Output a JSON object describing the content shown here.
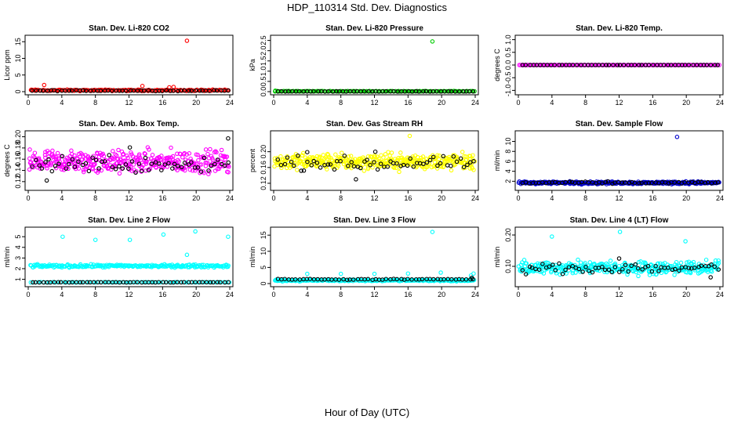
{
  "figure": {
    "title": "HDP_110314  Std. Dev. Diagnostics",
    "xlabel": "Hour of Day (UTC)"
  },
  "chart_data": [
    {
      "type": "scatter",
      "title": "Stan. Dev. Li-820 CO2",
      "ylabel": "Licor ppm",
      "xlim": [
        0,
        24
      ],
      "ylim": [
        0,
        16
      ],
      "xticks": [
        0,
        4,
        8,
        12,
        16,
        20,
        24
      ],
      "xtick_labels": [
        "0",
        "4",
        "8",
        "12",
        "16",
        "20",
        "24"
      ],
      "yticks": [
        0,
        5,
        10,
        15
      ],
      "ytick_labels": [
        "0",
        "5",
        "10",
        "15"
      ],
      "color": "#ff0000",
      "series": [
        {
          "name": "colored",
          "color": "#ff0000",
          "x_range": [
            0.3,
            23.9
          ],
          "baseline": 0.4,
          "spread": 0.3,
          "count": 160,
          "outliers": [
            [
              1.9,
              2.0
            ],
            [
              13.6,
              1.7
            ],
            [
              16.8,
              1.3
            ],
            [
              17.3,
              1.4
            ],
            [
              18.9,
              15.3
            ],
            [
              0.4,
              0.6
            ]
          ]
        },
        {
          "name": "black",
          "color": "#000000",
          "x_range": [
            0.5,
            23.8
          ],
          "baseline": 0.3,
          "spread": 0.2,
          "count": 55,
          "outliers": []
        }
      ]
    },
    {
      "type": "scatter",
      "title": "Stan. Dev. Li-820 Pressure",
      "ylabel": "kPa",
      "xlim": [
        0,
        24
      ],
      "ylim": [
        0,
        2.6
      ],
      "xticks": [
        0,
        4,
        8,
        12,
        16,
        20,
        24
      ],
      "xtick_labels": [
        "0",
        "4",
        "8",
        "12",
        "16",
        "20",
        "24"
      ],
      "yticks": [
        0,
        0.5,
        1,
        1.5,
        2,
        2.5
      ],
      "ytick_labels": [
        "0.0",
        "0.5",
        "1.0",
        "1.5",
        "2.0",
        "2.5"
      ],
      "color": "#00cd00",
      "series": [
        {
          "name": "colored",
          "color": "#00cd00",
          "x_range": [
            0.1,
            23.9
          ],
          "baseline": 0.02,
          "spread": 0.02,
          "count": 150,
          "outliers": [
            [
              18.9,
              2.45
            ],
            [
              0.2,
              0.05
            ]
          ]
        },
        {
          "name": "black",
          "color": "#000000",
          "x_range": [
            0.5,
            23.8
          ],
          "baseline": 0.01,
          "spread": 0.01,
          "count": 55,
          "outliers": []
        }
      ]
    },
    {
      "type": "scatter",
      "title": "Stan. Dev. Li-820 Temp.",
      "ylabel": "degrees C",
      "xlim": [
        0,
        24
      ],
      "ylim": [
        -1.05,
        1.05
      ],
      "xticks": [
        0,
        4,
        8,
        12,
        16,
        20,
        24
      ],
      "xtick_labels": [
        "0",
        "4",
        "8",
        "12",
        "16",
        "20",
        "24"
      ],
      "yticks": [
        -1,
        -0.5,
        0,
        0.5,
        1
      ],
      "ytick_labels": [
        "-1.0",
        "-0.5",
        "0.0",
        "0.5",
        "1.0"
      ],
      "color": "#ff00ff",
      "series": [
        {
          "name": "colored",
          "color": "#ff00ff",
          "x_range": [
            0.1,
            23.9
          ],
          "baseline": 0.0,
          "spread": 0.0,
          "count": 170,
          "outliers": []
        },
        {
          "name": "black",
          "color": "#000000",
          "x_range": [
            0.5,
            23.8
          ],
          "baseline": 0.0,
          "spread": 0.0,
          "count": 55,
          "outliers": []
        }
      ]
    },
    {
      "type": "scatter",
      "title": "Stan. Dev. Amb. Box Temp.",
      "ylabel": "degrees C",
      "xlim": [
        0,
        24
      ],
      "ylim": [
        0.11,
        0.205
      ],
      "xticks": [
        0,
        4,
        8,
        12,
        16,
        20,
        24
      ],
      "xtick_labels": [
        "0",
        "4",
        "8",
        "12",
        "16",
        "20",
        "24"
      ],
      "yticks": [
        0.12,
        0.14,
        0.16,
        0.18,
        0.2
      ],
      "ytick_labels": [
        "0.12",
        "0.14",
        "0.16",
        "0.18",
        "0.20"
      ],
      "color": "#ff00ff",
      "series": [
        {
          "name": "colored",
          "color": "#ff00ff",
          "x_range": [
            0.1,
            23.9
          ],
          "baseline": 0.155,
          "spread": 0.03,
          "count": 380,
          "outliers": []
        },
        {
          "name": "black",
          "color": "#000000",
          "x_range": [
            0.5,
            23.8
          ],
          "baseline": 0.152,
          "spread": 0.025,
          "count": 60,
          "outliers": [
            [
              12.1,
              0.181
            ],
            [
              23.8,
              0.197
            ],
            [
              2.2,
              0.122
            ]
          ]
        }
      ]
    },
    {
      "type": "scatter",
      "title": "Stan. Dev. Gas Stream RH",
      "ylabel": "percent",
      "xlim": [
        0,
        24
      ],
      "ylim": [
        0.11,
        0.245
      ],
      "xticks": [
        0,
        4,
        8,
        12,
        16,
        20,
        24
      ],
      "xtick_labels": [
        "0",
        "4",
        "8",
        "12",
        "16",
        "20",
        "24"
      ],
      "yticks": [
        0.12,
        0.16,
        0.2
      ],
      "ytick_labels": [
        "0.12",
        "0.16",
        "0.20"
      ],
      "color": "#ffff00",
      "series": [
        {
          "name": "colored",
          "color": "#ffff00",
          "x_range": [
            0.1,
            23.9
          ],
          "baseline": 0.175,
          "spread": 0.03,
          "count": 400,
          "outliers": [
            [
              16.2,
              0.24
            ]
          ]
        },
        {
          "name": "black",
          "color": "#000000",
          "x_range": [
            0.5,
            23.8
          ],
          "baseline": 0.17,
          "spread": 0.025,
          "count": 60,
          "outliers": [
            [
              4.0,
              0.199
            ],
            [
              12.1,
              0.2
            ],
            [
              9.8,
              0.13
            ]
          ]
        }
      ]
    },
    {
      "type": "scatter",
      "title": "Stan. Dev. Sample Flow",
      "ylabel": "ml/min",
      "xlim": [
        0,
        24
      ],
      "ylim": [
        0.8,
        11.5
      ],
      "xticks": [
        0,
        4,
        8,
        12,
        16,
        20,
        24
      ],
      "xtick_labels": [
        "0",
        "4",
        "8",
        "12",
        "16",
        "20",
        "24"
      ],
      "yticks": [
        2,
        4,
        6,
        8,
        10
      ],
      "ytick_labels": [
        "2",
        "4",
        "6",
        "8",
        "10"
      ],
      "color": "#0000cd",
      "series": [
        {
          "name": "colored",
          "color": "#0000cd",
          "x_range": [
            0.1,
            23.9
          ],
          "baseline": 1.7,
          "spread": 0.4,
          "count": 300,
          "outliers": [
            [
              18.9,
              10.9
            ]
          ]
        },
        {
          "name": "black",
          "color": "#000000",
          "x_range": [
            0.5,
            23.8
          ],
          "baseline": 1.7,
          "spread": 0.3,
          "count": 60,
          "outliers": []
        }
      ]
    },
    {
      "type": "scatter",
      "title": "Stan. Dev. Line 2 Flow",
      "ylabel": "ml/min",
      "xlim": [
        0,
        24
      ],
      "ylim": [
        0.6,
        5.6
      ],
      "xticks": [
        0,
        4,
        8,
        12,
        16,
        20,
        24
      ],
      "xtick_labels": [
        "0",
        "4",
        "8",
        "12",
        "16",
        "20",
        "24"
      ],
      "yticks": [
        1,
        2,
        3,
        4,
        5
      ],
      "ytick_labels": [
        "1",
        "2",
        "3",
        "4",
        "5"
      ],
      "color": "#00ffff",
      "series": [
        {
          "name": "colored-upper",
          "color": "#00ffff",
          "x_range": [
            0.3,
            23.9
          ],
          "baseline": 2.25,
          "spread": 0.2,
          "count": 230,
          "outliers": [
            [
              4.1,
              5.0
            ],
            [
              8.0,
              4.7
            ],
            [
              12.1,
              4.7
            ],
            [
              16.1,
              5.2
            ],
            [
              19.9,
              5.5
            ],
            [
              23.8,
              5.0
            ],
            [
              18.9,
              3.3
            ]
          ]
        },
        {
          "name": "colored-lower",
          "color": "#00ffff",
          "x_range": [
            0.3,
            23.9
          ],
          "baseline": 0.72,
          "spread": 0.03,
          "count": 80,
          "outliers": []
        },
        {
          "name": "black",
          "color": "#000000",
          "x_range": [
            0.5,
            23.8
          ],
          "baseline": 0.72,
          "spread": 0.02,
          "count": 55,
          "outliers": []
        }
      ]
    },
    {
      "type": "scatter",
      "title": "Stan. Dev. Line 3 Flow",
      "ylabel": "ml/min",
      "xlim": [
        0,
        24
      ],
      "ylim": [
        0,
        16.5
      ],
      "xticks": [
        0,
        4,
        8,
        12,
        16,
        20,
        24
      ],
      "xtick_labels": [
        "0",
        "4",
        "8",
        "12",
        "16",
        "20",
        "24"
      ],
      "yticks": [
        0,
        5,
        10,
        15
      ],
      "ytick_labels": [
        "0",
        "5",
        "10",
        "15"
      ],
      "color": "#00ffff",
      "series": [
        {
          "name": "colored",
          "color": "#00ffff",
          "x_range": [
            0.1,
            23.9
          ],
          "baseline": 1.0,
          "spread": 0.4,
          "count": 260,
          "outliers": [
            [
              4.0,
              3.0
            ],
            [
              8.0,
              3.0
            ],
            [
              12.0,
              3.0
            ],
            [
              16.0,
              3.1
            ],
            [
              18.9,
              16.0
            ],
            [
              19.9,
              3.4
            ],
            [
              23.8,
              3.1
            ],
            [
              23.5,
              2.5
            ]
          ]
        },
        {
          "name": "black",
          "color": "#000000",
          "x_range": [
            0.5,
            23.8
          ],
          "baseline": 1.3,
          "spread": 0.2,
          "count": 55,
          "outliers": [
            [
              23.6,
              1.8
            ]
          ]
        }
      ]
    },
    {
      "type": "scatter",
      "title": "Stan. Dev. Line 4 (LT) Flow",
      "ylabel": "ml/min",
      "xlim": [
        0,
        24
      ],
      "ylim": [
        0.045,
        0.215
      ],
      "xticks": [
        0,
        4,
        8,
        12,
        16,
        20,
        24
      ],
      "xtick_labels": [
        "0",
        "4",
        "8",
        "12",
        "16",
        "20",
        "24"
      ],
      "yticks": [
        0.1,
        0.2
      ],
      "ytick_labels": [
        "0.10",
        "0.20"
      ],
      "color": "#00ffff",
      "series": [
        {
          "name": "colored",
          "color": "#00ffff",
          "x_range": [
            0.1,
            23.9
          ],
          "baseline": 0.095,
          "spread": 0.03,
          "count": 360,
          "outliers": [
            [
              4.0,
              0.195
            ],
            [
              12.1,
              0.21
            ],
            [
              19.9,
              0.18
            ]
          ]
        },
        {
          "name": "black",
          "color": "#000000",
          "x_range": [
            0.5,
            23.8
          ],
          "baseline": 0.095,
          "spread": 0.025,
          "count": 60,
          "outliers": [
            [
              12.0,
              0.125
            ],
            [
              22.9,
              0.065
            ]
          ]
        }
      ]
    }
  ]
}
